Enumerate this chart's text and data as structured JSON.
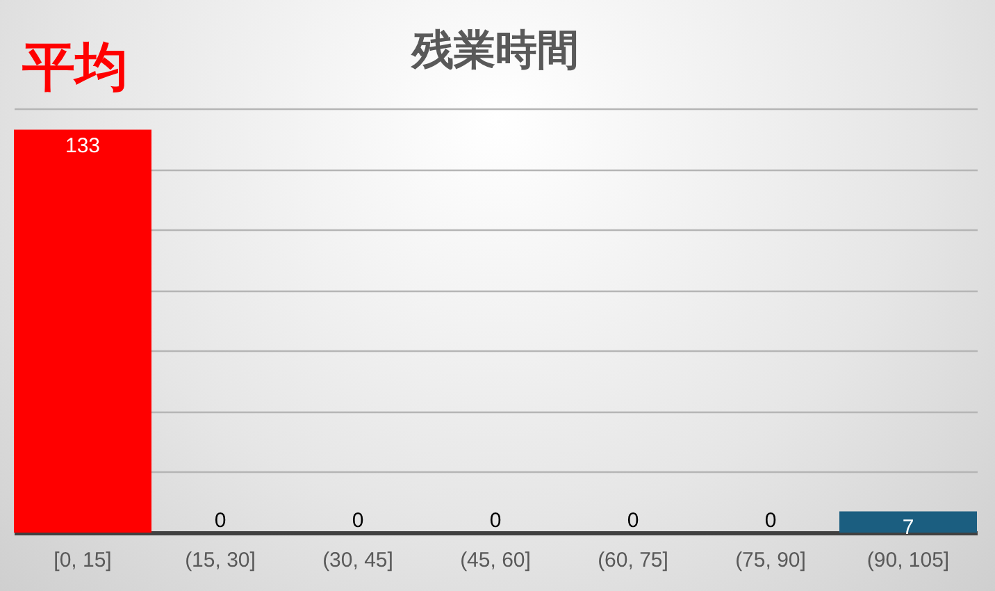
{
  "chart_data": {
    "type": "bar",
    "title": "残業時間",
    "annotations": [
      "平均"
    ],
    "categories": [
      "[0, 15]",
      "(15, 30]",
      "(30, 45]",
      "(45, 60]",
      "(60, 75]",
      "(75, 90]",
      "(90, 105]"
    ],
    "values": [
      133,
      0,
      0,
      0,
      0,
      0,
      7
    ],
    "colors": [
      "#ff0000",
      "#1b5e80",
      "#1b5e80",
      "#1b5e80",
      "#1b5e80",
      "#1b5e80",
      "#1b5e80"
    ],
    "ylim": [
      0,
      140
    ],
    "yticks": [
      {
        "value": 20,
        "label": null
      },
      {
        "value": 40,
        "label": null
      },
      {
        "value": 60,
        "label": null
      },
      {
        "value": 80,
        "label": null
      },
      {
        "value": 100,
        "label": null
      },
      {
        "value": 120,
        "label": null
      },
      {
        "value": 140,
        "label": null
      }
    ],
    "grid": "y",
    "tick_labels": "x",
    "data_labels": true
  }
}
